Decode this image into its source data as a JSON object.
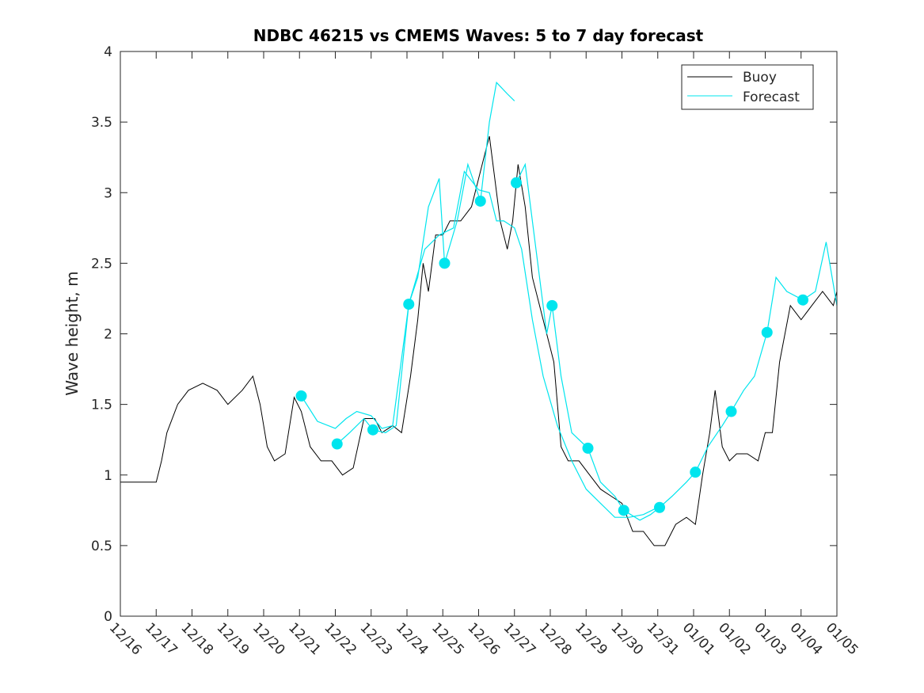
{
  "chart_data": {
    "type": "line",
    "title": "NDBC 46215 vs CMEMS Waves: 5 to 7 day forecast",
    "xlabel": "",
    "ylabel": "Wave height, m",
    "x_units": "days since 12/16",
    "xlim": [
      0,
      20
    ],
    "ylim": [
      0,
      4
    ],
    "x_ticks": [
      0,
      1,
      2,
      3,
      4,
      5,
      6,
      7,
      8,
      9,
      10,
      11,
      12,
      13,
      14,
      15,
      16,
      17,
      18,
      19,
      20
    ],
    "x_tick_labels": [
      "12/16",
      "12/17",
      "12/18",
      "12/19",
      "12/20",
      "12/21",
      "12/22",
      "12/23",
      "12/24",
      "12/25",
      "12/26",
      "12/27",
      "12/28",
      "12/29",
      "12/30",
      "12/31",
      "01/01",
      "01/02",
      "01/03",
      "01/04",
      "01/05"
    ],
    "y_ticks": [
      0,
      0.5,
      1,
      1.5,
      2,
      2.5,
      3,
      3.5,
      4
    ],
    "y_tick_labels": [
      "0",
      "0.5",
      "1",
      "1.5",
      "2",
      "2.5",
      "3",
      "3.5",
      "4"
    ],
    "legend_position": "top-right",
    "series": [
      {
        "name": "Buoy",
        "color": "#000000",
        "x": [
          0,
          0.5,
          1,
          1.15,
          1.3,
          1.6,
          1.9,
          2.3,
          2.7,
          3.0,
          3.4,
          3.7,
          3.9,
          4.1,
          4.3,
          4.6,
          4.85,
          5.05,
          5.3,
          5.6,
          5.9,
          6.2,
          6.5,
          6.8,
          7.1,
          7.3,
          7.6,
          7.85,
          8.1,
          8.3,
          8.45,
          8.6,
          8.8,
          9.0,
          9.2,
          9.5,
          9.8,
          10.1,
          10.3,
          10.45,
          10.6,
          10.8,
          10.95,
          11.1,
          11.3,
          11.5,
          11.8,
          12.1,
          12.3,
          12.5,
          12.8,
          13.1,
          13.4,
          13.7,
          14.0,
          14.3,
          14.6,
          14.9,
          15.2,
          15.5,
          15.8,
          16.05,
          16.25,
          16.45,
          16.6,
          16.8,
          17.0,
          17.2,
          17.5,
          17.8,
          18.0,
          18.2,
          18.4,
          18.7,
          19.0,
          19.3,
          19.6,
          19.9,
          20
        ],
        "y": [
          0.95,
          0.95,
          0.95,
          1.1,
          1.3,
          1.5,
          1.6,
          1.65,
          1.6,
          1.5,
          1.6,
          1.7,
          1.5,
          1.2,
          1.1,
          1.15,
          1.55,
          1.45,
          1.2,
          1.1,
          1.1,
          1.0,
          1.05,
          1.4,
          1.4,
          1.3,
          1.35,
          1.3,
          1.7,
          2.1,
          2.5,
          2.3,
          2.7,
          2.7,
          2.8,
          2.8,
          2.9,
          3.2,
          3.4,
          3.1,
          2.8,
          2.6,
          2.8,
          3.2,
          2.9,
          2.4,
          2.1,
          1.8,
          1.2,
          1.1,
          1.1,
          1.0,
          0.9,
          0.85,
          0.8,
          0.6,
          0.6,
          0.5,
          0.5,
          0.65,
          0.7,
          0.65,
          1.0,
          1.3,
          1.6,
          1.2,
          1.1,
          1.15,
          1.15,
          1.1,
          1.3,
          1.3,
          1.8,
          2.2,
          2.1,
          2.2,
          2.3,
          2.2,
          2.3
        ]
      },
      {
        "name": "Forecast",
        "color": "#00e5ee",
        "marker_points": {
          "x": [
            5.05,
            6.05,
            7.05,
            8.05,
            9.05,
            10.05,
            11.05,
            12.05,
            13.05,
            14.05,
            15.05,
            16.05,
            17.05,
            18.05,
            19.05
          ],
          "y": [
            1.56,
            1.22,
            1.32,
            2.21,
            2.5,
            2.94,
            3.07,
            2.2,
            1.19,
            0.75,
            0.77,
            1.02,
            1.45,
            2.01,
            2.24
          ]
        },
        "runs": [
          {
            "x": [
              5.05,
              5.5,
              6.0,
              6.3,
              6.6,
              7.0,
              7.3,
              7.6,
              8.05,
              8.5,
              8.9,
              9.3,
              9.6,
              10.0,
              10.3,
              10.5,
              10.7,
              11.0,
              11.2,
              11.5,
              11.8,
              12.2,
              12.6,
              13.0,
              13.4,
              13.8,
              14.2,
              14.6,
              15.0
            ],
            "y": [
              1.56,
              1.38,
              1.33,
              1.4,
              1.45,
              1.42,
              1.33,
              1.35,
              2.21,
              2.6,
              2.7,
              2.75,
              3.15,
              3.02,
              3.0,
              2.8,
              2.8,
              2.75,
              2.6,
              2.1,
              1.7,
              1.35,
              1.1,
              0.9,
              0.8,
              0.7,
              0.7,
              0.72,
              0.77
            ]
          },
          {
            "x": [
              6.05,
              6.4,
              6.8,
              7.05,
              7.4,
              7.7,
              8.05,
              8.3,
              8.6,
              8.9,
              9.05,
              9.4,
              9.7,
              10.05,
              10.3,
              10.5,
              10.8,
              11.0
            ],
            "y": [
              1.22,
              1.3,
              1.4,
              1.32,
              1.3,
              1.35,
              2.21,
              2.4,
              2.9,
              3.1,
              2.5,
              2.8,
              3.2,
              2.94,
              3.5,
              3.78,
              3.7,
              3.65
            ]
          },
          {
            "x": [
              11.05,
              11.3,
              11.6,
              11.9,
              12.05,
              12.3,
              12.6,
              13.05,
              13.4,
              13.8,
              14.05,
              14.5,
              14.8,
              15.05,
              15.4,
              15.8,
              16.05,
              16.4,
              16.8,
              17.05,
              17.4,
              17.7,
              18.05,
              18.3,
              18.6,
              19.05,
              19.4,
              19.7,
              20
            ],
            "y": [
              3.07,
              3.2,
              2.6,
              2.0,
              2.2,
              1.7,
              1.3,
              1.19,
              0.95,
              0.85,
              0.75,
              0.68,
              0.72,
              0.77,
              0.85,
              0.95,
              1.02,
              1.2,
              1.35,
              1.45,
              1.6,
              1.7,
              2.01,
              2.4,
              2.3,
              2.24,
              2.3,
              2.65,
              2.2
            ]
          }
        ]
      }
    ]
  }
}
